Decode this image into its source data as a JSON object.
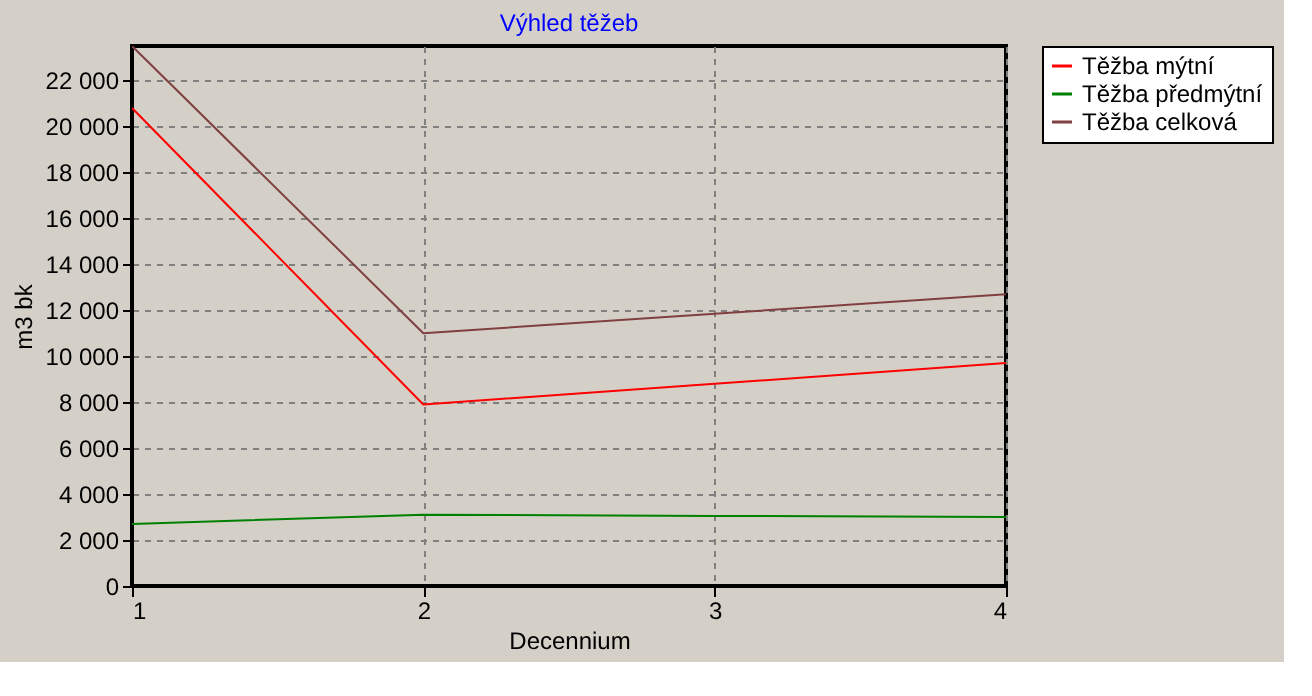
{
  "chart_data": {
    "type": "line",
    "title": "Výhled těžeb",
    "xlabel": "Decennium",
    "ylabel": "m3 bk",
    "x": [
      1,
      2,
      3,
      4
    ],
    "series": [
      {
        "name": "Těžba mýtní",
        "color": "#ff0000",
        "values": [
          20800,
          7900,
          8800,
          9700
        ]
      },
      {
        "name": "Těžba předmýtní",
        "color": "#008000",
        "values": [
          2700,
          3100,
          3050,
          3000
        ]
      },
      {
        "name": "Těžba celková",
        "color": "#804040",
        "values": [
          23500,
          11000,
          11850,
          12700
        ]
      }
    ],
    "xlim": [
      1,
      4
    ],
    "xticks": [
      1,
      2,
      3,
      4
    ],
    "ylim": [
      0,
      23500
    ],
    "yticks": [
      {
        "value": 0,
        "label": "0"
      },
      {
        "value": 2000,
        "label": "2 000"
      },
      {
        "value": 4000,
        "label": "4 000"
      },
      {
        "value": 6000,
        "label": "6 000"
      },
      {
        "value": 8000,
        "label": "8 000"
      },
      {
        "value": 10000,
        "label": "10 000"
      },
      {
        "value": 12000,
        "label": "12 000"
      },
      {
        "value": 14000,
        "label": "14 000"
      },
      {
        "value": 16000,
        "label": "16 000"
      },
      {
        "value": 18000,
        "label": "18 000"
      },
      {
        "value": 20000,
        "label": "20 000"
      },
      {
        "value": 22000,
        "label": "22 000"
      }
    ],
    "grid": true,
    "legend": "top right",
    "line_style": "solid",
    "marker": "none"
  }
}
